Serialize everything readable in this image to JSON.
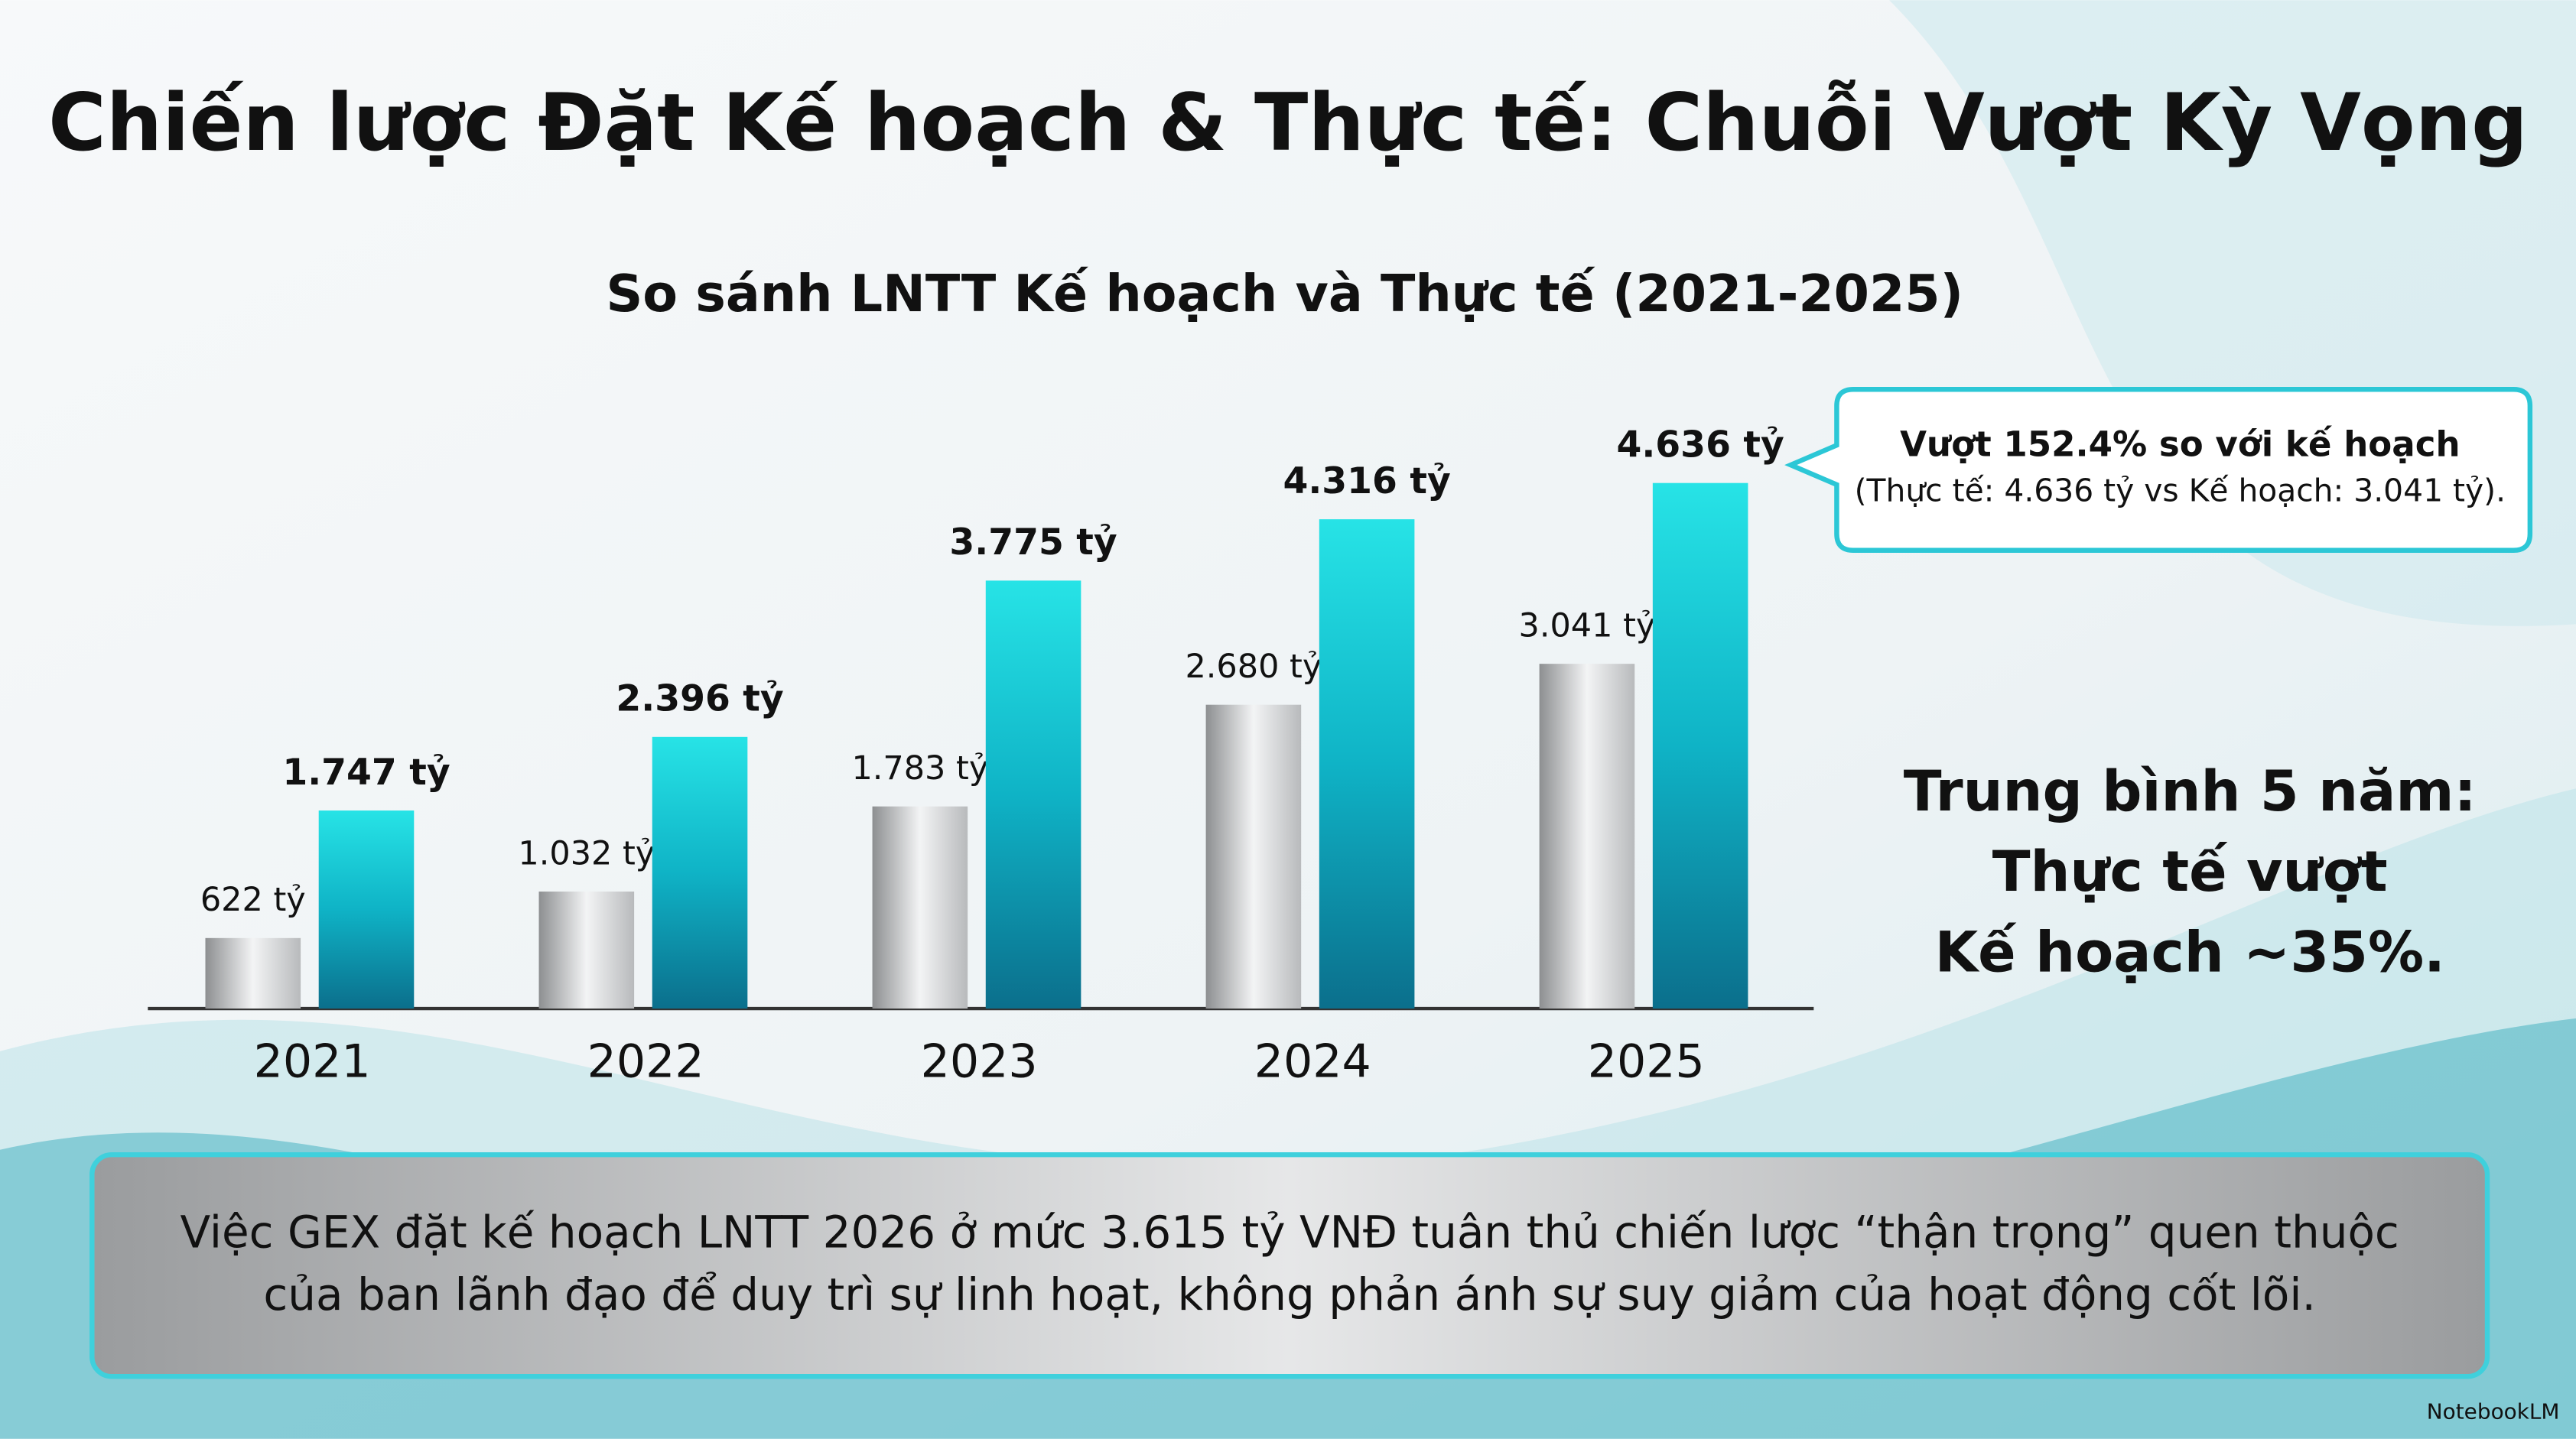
{
  "title": "Chiến lược Đặt Kế hoạch & Thực tế: Chuỗi Vượt Kỳ Vọng",
  "chart_data": {
    "type": "bar",
    "title": "So sánh LNTT Kế hoạch và Thực tế (2021-2025)",
    "categories": [
      "2021",
      "2022",
      "2023",
      "2024",
      "2025"
    ],
    "series": [
      {
        "color": "#b8babc",
        "values": [
          622,
          1032,
          1783,
          2680,
          3041
        ],
        "value_labels": [
          "622 tỷ",
          "1.032 tỷ",
          "1.783 tỷ",
          "2.680 tỷ",
          "3.041 tỷ"
        ]
      },
      {
        "color": "#0fb3c6",
        "values": [
          1747,
          2396,
          3775,
          4316,
          4636
        ],
        "value_labels": [
          "1.747 tỷ",
          "2.396 tỷ",
          "3.775 tỷ",
          "4.316 tỷ",
          "4.636 tỷ"
        ]
      }
    ]
  },
  "callout": [
    "Vượt 152.4% so với kế hoạch",
    "(Thực tế: 4.636 tỷ vs Kế hoạch: 3.041 tỷ)."
  ],
  "summary": [
    "Trung bình 5 năm:",
    "Thực tế vượt",
    "Kế hoạch ~35%."
  ],
  "conclusion": [
    "Việc GEX đặt kế hoạch LNTT 2026 ở mức 3.615 tỷ VNĐ tuân thủ chiến lược “thận trọng” quen thuộc",
    "của ban lãnh đạo để duy trì sự linh hoạt, không phản ánh sự suy giảm của hoạt động cốt lõi."
  ],
  "brand": "NotebookLM"
}
